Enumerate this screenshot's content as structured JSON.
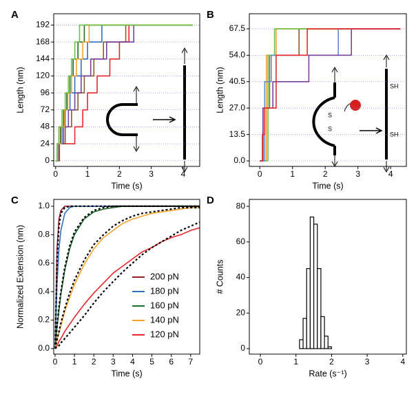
{
  "chart_data": [
    {
      "type": "line",
      "panel_label": "A",
      "x_label": "Time (s)",
      "y_label": "Length (nm)",
      "xlim": [
        -0.06,
        4.52
      ],
      "ylim": [
        -8,
        208
      ],
      "xticks": [
        0,
        1,
        2,
        3,
        4
      ],
      "yticks": [
        0,
        24,
        48,
        72,
        96,
        120,
        144,
        168,
        192
      ],
      "grid": true,
      "series": [
        {
          "color": "#e8262a",
          "x": [
            0,
            0.12,
            0.12,
            0.6,
            0.6,
            0.85,
            0.85,
            1.0,
            1.0,
            1.3,
            1.3,
            1.7,
            1.7,
            2.0,
            2.0,
            2.3,
            2.3,
            4.3
          ],
          "values": [
            0,
            0,
            24,
            24,
            48,
            48,
            72,
            72,
            96,
            96,
            120,
            120,
            144,
            144,
            168,
            168,
            192,
            192
          ]
        },
        {
          "color": "#8b5a2b",
          "x": [
            0,
            0.1,
            0.1,
            0.3,
            0.3,
            0.5,
            0.5,
            0.7,
            0.7,
            0.9,
            0.9,
            1.2,
            1.2,
            1.5,
            1.5,
            2.2,
            2.2,
            4.3
          ],
          "values": [
            0,
            0,
            24,
            24,
            48,
            48,
            72,
            72,
            96,
            96,
            120,
            120,
            144,
            144,
            168,
            168,
            192,
            192
          ]
        },
        {
          "color": "#7b3fa0",
          "x": [
            0,
            0.1,
            0.1,
            0.25,
            0.25,
            0.4,
            0.4,
            0.6,
            0.6,
            0.8,
            0.8,
            1.1,
            1.1,
            1.6,
            1.6,
            2.45,
            2.45,
            4.3
          ],
          "values": [
            0,
            0,
            24,
            24,
            48,
            48,
            72,
            72,
            96,
            96,
            120,
            120,
            144,
            144,
            168,
            168,
            192,
            192
          ]
        },
        {
          "color": "#2f6fbf",
          "x": [
            0,
            0.08,
            0.08,
            0.2,
            0.2,
            0.3,
            0.3,
            0.45,
            0.45,
            0.6,
            0.6,
            0.8,
            0.8,
            1.0,
            1.0,
            1.45,
            1.45,
            4.3
          ],
          "values": [
            0,
            0,
            24,
            24,
            48,
            48,
            72,
            72,
            96,
            96,
            120,
            120,
            144,
            144,
            168,
            168,
            192,
            192
          ]
        },
        {
          "color": "#1f6b2e",
          "x": [
            0,
            0.05,
            0.05,
            0.15,
            0.15,
            0.25,
            0.25,
            0.35,
            0.35,
            0.45,
            0.45,
            0.55,
            0.55,
            0.7,
            0.7,
            0.9,
            0.9,
            4.3
          ],
          "values": [
            0,
            0,
            24,
            24,
            48,
            48,
            72,
            72,
            96,
            96,
            120,
            120,
            144,
            144,
            168,
            168,
            192,
            192
          ]
        },
        {
          "color": "#f2a22a",
          "x": [
            0,
            0.07,
            0.07,
            0.18,
            0.18,
            0.28,
            0.28,
            0.38,
            0.38,
            0.5,
            0.5,
            0.65,
            0.65,
            0.85,
            0.85,
            1.05,
            1.05,
            4.3
          ],
          "values": [
            0,
            0,
            24,
            24,
            48,
            48,
            72,
            72,
            96,
            96,
            120,
            120,
            144,
            144,
            168,
            168,
            192,
            192
          ]
        },
        {
          "color": "#6cc04a",
          "x": [
            0,
            0.05,
            0.05,
            0.1,
            0.1,
            0.2,
            0.2,
            0.3,
            0.3,
            0.4,
            0.4,
            0.5,
            0.5,
            0.6,
            0.6,
            0.75,
            0.75,
            4.3
          ],
          "values": [
            0,
            0,
            24,
            24,
            48,
            48,
            72,
            72,
            96,
            96,
            120,
            120,
            144,
            144,
            168,
            168,
            192,
            192
          ]
        }
      ]
    },
    {
      "type": "line",
      "panel_label": "B",
      "x_label": "Time (s)",
      "y_label": "Length (nm)",
      "xlim": [
        -0.32,
        4.48
      ],
      "ylim": [
        -2.8,
        75.2
      ],
      "xticks": [
        0,
        1,
        2,
        3,
        4
      ],
      "yticks": [
        {
          "value": 0,
          "label": "0.0"
        },
        13.5,
        {
          "value": 27,
          "label": "27.0"
        },
        40.5,
        {
          "value": 54,
          "label": "54.0"
        },
        67.5
      ],
      "grid": true,
      "annotations": [
        "SH",
        "SH",
        "S",
        "S"
      ],
      "series": [
        {
          "color": "#8b5a2b",
          "x": [
            0,
            0.1,
            0.1,
            0.3,
            0.3,
            1.2,
            1.2,
            4.3
          ],
          "values": [
            0,
            0,
            27,
            27,
            54,
            54,
            67.5,
            67.5
          ]
        },
        {
          "color": "#f2a22a",
          "x": [
            0,
            0.2,
            0.2,
            0.5,
            0.5,
            4.3
          ],
          "values": [
            0,
            0,
            54,
            54,
            67.5,
            67.5
          ]
        },
        {
          "color": "#6cc04a",
          "x": [
            0,
            0.25,
            0.25,
            0.45,
            0.45,
            4.3
          ],
          "values": [
            0,
            0,
            54,
            54,
            67.5,
            67.5
          ]
        },
        {
          "color": "#5b8fd6",
          "x": [
            0,
            0.15,
            0.15,
            0.35,
            0.35,
            2.4,
            2.4,
            4.3
          ],
          "values": [
            0,
            0,
            40.5,
            40.5,
            54,
            54,
            67.5,
            67.5
          ]
        },
        {
          "color": "#7b3fa0",
          "x": [
            0,
            0.1,
            0.1,
            0.4,
            0.4,
            1.5,
            1.5,
            2.8,
            2.8,
            4.3
          ],
          "values": [
            0,
            0,
            27,
            27,
            40.5,
            40.5,
            54,
            54,
            67.5,
            67.5
          ]
        },
        {
          "color": "#e8262a",
          "x": [
            0,
            0.08,
            0.08,
            0.15,
            0.15,
            0.5,
            0.5,
            1.45,
            1.45,
            4.3
          ],
          "values": [
            0,
            0,
            13.5,
            13.5,
            27,
            27,
            54,
            54,
            67.5,
            67.5
          ]
        }
      ]
    },
    {
      "type": "line",
      "panel_label": "C",
      "x_label": "Time (s)",
      "y_label": "Normalized Extension (nm)",
      "xlim": [
        -0.07,
        7.47
      ],
      "ylim": [
        -0.039,
        1.048
      ],
      "xticks": [
        0,
        1,
        2,
        3,
        4,
        5,
        6,
        7
      ],
      "yticks": [
        {
          "value": 0,
          "label": "0.0"
        },
        0.2,
        0.4,
        0.6,
        0.8,
        {
          "value": 1,
          "label": "1.0"
        }
      ],
      "legend": "lower right",
      "x": [
        0,
        0.1,
        0.2,
        0.3,
        0.5,
        0.75,
        1,
        1.5,
        2,
        2.5,
        3,
        3.5,
        4,
        4.5,
        5,
        5.5,
        6,
        6.5,
        7,
        7.5
      ],
      "series": [
        {
          "name": "200 pN",
          "color": "#9b1b30",
          "values": [
            0,
            0.7,
            0.91,
            0.97,
            1,
            1,
            1,
            1,
            1,
            1,
            1,
            1,
            1,
            1,
            1,
            1,
            1,
            1,
            1,
            1
          ]
        },
        {
          "name": "180 pN",
          "color": "#2f6fbf",
          "values": [
            0,
            0.45,
            0.7,
            0.83,
            0.95,
            0.99,
            1,
            1,
            1,
            1,
            1,
            1,
            1,
            1,
            1,
            1,
            1,
            1,
            1,
            1
          ]
        },
        {
          "name": "160 pN",
          "color": "#1f6b2e",
          "values": [
            0,
            0.15,
            0.27,
            0.38,
            0.55,
            0.7,
            0.8,
            0.91,
            0.96,
            0.98,
            0.99,
            1,
            1,
            1,
            1,
            1,
            1,
            1,
            1,
            1
          ]
        },
        {
          "name": "140 pN",
          "color": "#f2a22a",
          "values": [
            0,
            0.06,
            0.11,
            0.16,
            0.26,
            0.36,
            0.45,
            0.59,
            0.7,
            0.78,
            0.83,
            0.88,
            0.91,
            0.93,
            0.95,
            0.96,
            0.97,
            0.98,
            0.99,
            0.99
          ]
        },
        {
          "name": "120 pN",
          "color": "#e8262a",
          "values": [
            0,
            0.02,
            0.05,
            0.07,
            0.12,
            0.17,
            0.22,
            0.31,
            0.39,
            0.46,
            0.53,
            0.58,
            0.63,
            0.68,
            0.71,
            0.75,
            0.78,
            0.8,
            0.83,
            0.85
          ]
        }
      ],
      "fit_lines": [
        {
          "color": "#000000",
          "values": [
            0,
            0.63,
            0.86,
            0.95,
            0.99,
            1,
            1,
            1,
            1,
            1,
            1,
            1,
            1,
            1,
            1,
            1,
            1,
            1,
            1,
            1
          ]
        },
        {
          "color": "#000000",
          "values": [
            0,
            0.16,
            0.29,
            0.4,
            0.57,
            0.72,
            0.82,
            0.92,
            0.97,
            0.99,
            1,
            1,
            1,
            1,
            1,
            1,
            1,
            1,
            1,
            1
          ]
        },
        {
          "color": "#000000",
          "values": [
            0,
            0.06,
            0.12,
            0.18,
            0.28,
            0.39,
            0.48,
            0.62,
            0.73,
            0.8,
            0.86,
            0.9,
            0.93,
            0.95,
            0.96,
            0.97,
            0.98,
            0.99,
            0.99,
            0.99
          ]
        },
        {
          "color": "#000000",
          "values": [
            0,
            0.01,
            0.02,
            0.04,
            0.07,
            0.11,
            0.15,
            0.23,
            0.32,
            0.4,
            0.47,
            0.54,
            0.6,
            0.66,
            0.71,
            0.75,
            0.79,
            0.83,
            0.86,
            0.89
          ]
        }
      ]
    },
    {
      "type": "histogram",
      "panel_label": "D",
      "x_label": "Rate (s⁻¹)",
      "y_label": "# Counts",
      "xlim": [
        -0.31,
        4.1
      ],
      "ylim": [
        -3.1,
        83.9
      ],
      "xticks": [
        0,
        1,
        2,
        3,
        4
      ],
      "yticks": [
        0,
        20,
        40,
        60,
        80
      ],
      "color": "#ffffff",
      "bins": [
        1.1,
        1.2,
        1.3,
        1.4,
        1.5,
        1.6,
        1.7,
        1.8,
        1.9,
        2.0
      ],
      "values": [
        5,
        17,
        45,
        74,
        70,
        45,
        18,
        7,
        1
      ]
    }
  ]
}
